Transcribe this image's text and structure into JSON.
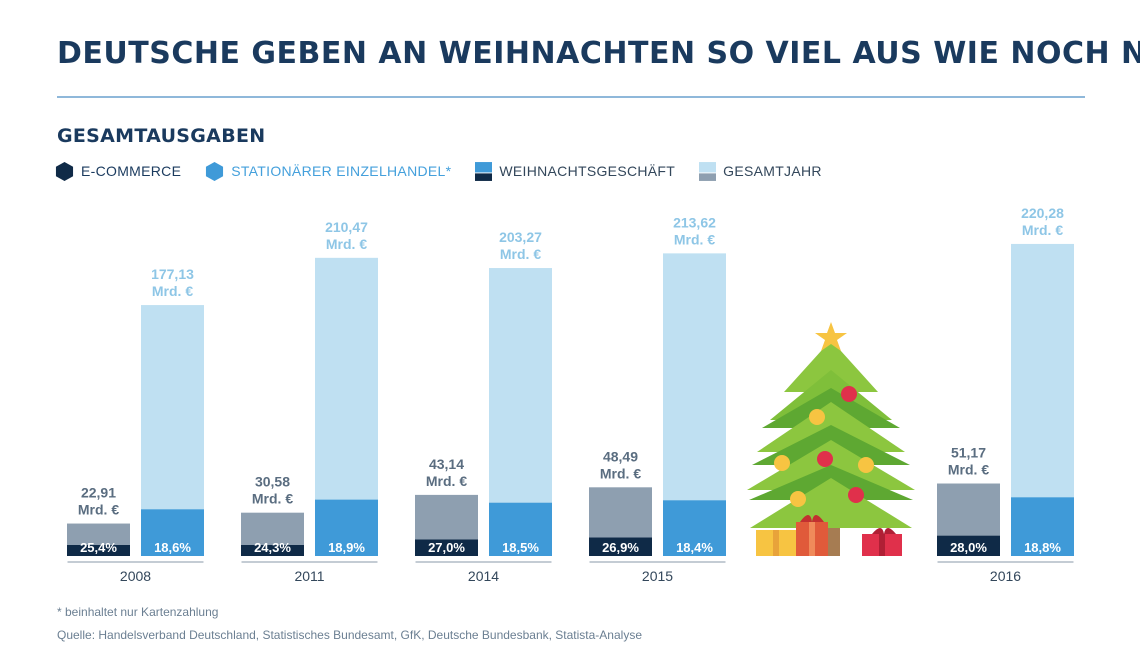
{
  "title": "DEUTSCHE GEBEN AN WEIHNACHTEN SO VIEL AUS WIE NOCH NIE",
  "subtitle": "GESAMTAUSGABEN",
  "legend": {
    "ecommerce": "E-COMMERCE",
    "stationaer": "STATIONÄRER EINZELHANDEL*",
    "weihnachtsgeschaeft": "WEIHNACHTSGESCHÄFT",
    "gesamtjahr": "GESAMTJAHR"
  },
  "colors": {
    "title": "#1a3a5e",
    "ecommerce": "#0f2a47",
    "stationaer": "#3f9ad8",
    "weihnachts_bar": "#8e9fb0",
    "gesamt_bar": "#bfe0f2",
    "label_weihnachts": "#5a6d80",
    "label_gesamt": "#8ec6e6"
  },
  "footnote": "* beinhaltet nur Kartenzahlung",
  "source": "Quelle: Handelsverband Deutschland, Statistisches Bundesamt, GfK, Deutsche Bundesbank, Statista-Analyse",
  "decoration": "christmas-tree-illustration",
  "chart_data": {
    "type": "bar",
    "categories": [
      "2008",
      "2011",
      "2014",
      "2015",
      "2016"
    ],
    "series": [
      {
        "name": "WEIHNACHTSGESCHÄFT",
        "values": [
          22.91,
          30.58,
          43.14,
          48.49,
          51.17
        ],
        "labels": [
          "22,91",
          "30,58",
          "43,14",
          "48,49",
          "51,17"
        ],
        "unit_label": "Mrd. €",
        "share_label": [
          "25,4%",
          "24,3%",
          "27,0%",
          "26,9%",
          "28,0%"
        ],
        "share_values": [
          25.4,
          24.3,
          27.0,
          26.9,
          28.0
        ],
        "share_series": "E-COMMERCE"
      },
      {
        "name": "GESAMTJAHR",
        "values": [
          177.13,
          210.47,
          203.27,
          213.62,
          220.28
        ],
        "labels": [
          "177,13",
          "210,47",
          "203,27",
          "213,62",
          "220,28"
        ],
        "unit_label": "Mrd. €",
        "share_label": [
          "18,6%",
          "18,9%",
          "18,5%",
          "18,4%",
          "18,8%"
        ],
        "share_values": [
          18.6,
          18.9,
          18.5,
          18.4,
          18.8
        ],
        "share_series": "STATIONÄRER EINZELHANDEL*"
      }
    ],
    "ylim": [
      0,
      240
    ],
    "grid": false,
    "legend_position": "top-left"
  }
}
